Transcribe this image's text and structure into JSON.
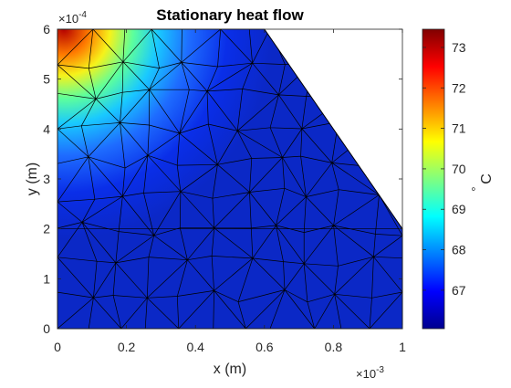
{
  "chart_data": {
    "type": "heatmap",
    "title": "Stationary heat flow",
    "xlabel": "x (m)",
    "ylabel": "y (m)",
    "x_exponent": {
      "base": "×10",
      "power": "-3"
    },
    "y_exponent": {
      "base": "×10",
      "power": "-4"
    },
    "xlim": [
      0,
      1
    ],
    "ylim": [
      0,
      6
    ],
    "x_ticks": [
      "0",
      "0.2",
      "0.4",
      "0.6",
      "0.8",
      "1"
    ],
    "x_tick_values": [
      0,
      0.2,
      0.4,
      0.6,
      0.8,
      1
    ],
    "y_ticks": [
      "0",
      "1",
      "2",
      "3",
      "4",
      "5",
      "6"
    ],
    "y_tick_values": [
      0,
      1,
      2,
      3,
      4,
      5,
      6
    ],
    "domain_polygon": [
      [
        0,
        0
      ],
      [
        1,
        0
      ],
      [
        1,
        2
      ],
      [
        0.6,
        6
      ],
      [
        0,
        6
      ]
    ],
    "hot_spot": {
      "x": 0.07,
      "y": 6,
      "temperature": 73.4
    },
    "colorbar": {
      "label_base": "C",
      "label_prefix": "°",
      "range": [
        66.05,
        73.45
      ],
      "ticks": [
        "67",
        "68",
        "69",
        "70",
        "71",
        "72",
        "73"
      ],
      "tick_values": [
        67,
        68,
        69,
        70,
        71,
        72,
        73
      ],
      "colormap": "jet"
    },
    "mesh": "triangular finite-element mesh overlay",
    "grid": false
  }
}
